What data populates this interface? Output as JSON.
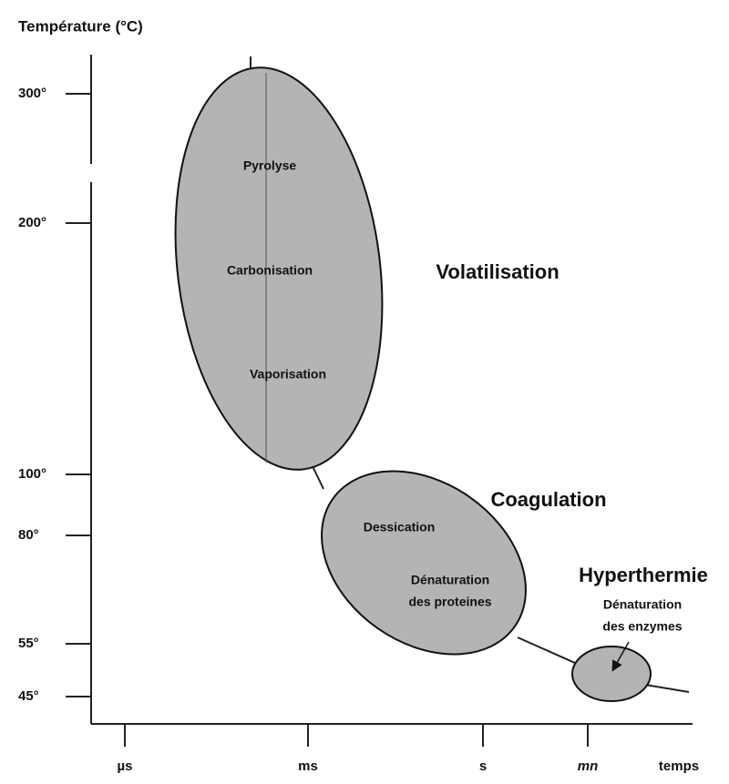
{
  "axis_title": "Température (°C)",
  "y_labels": [
    "300°",
    "200°",
    "100°",
    "80°",
    "55°",
    "45°"
  ],
  "x_labels": [
    "µs",
    "ms",
    "s",
    "mn",
    "temps"
  ],
  "regions": {
    "volatilisation": {
      "title": "Volatilisation",
      "labels": [
        "Pyrolyse",
        "Carbonisation",
        "Vaporisation"
      ]
    },
    "coagulation": {
      "title": "Coagulation",
      "labels": [
        [
          "Dessication"
        ],
        [
          "Dénaturation",
          "des proteines"
        ]
      ]
    },
    "hyperthermie": {
      "title": "Hyperthermie",
      "labels": [
        [
          "Dénaturation",
          "des enzymes"
        ]
      ]
    }
  }
}
